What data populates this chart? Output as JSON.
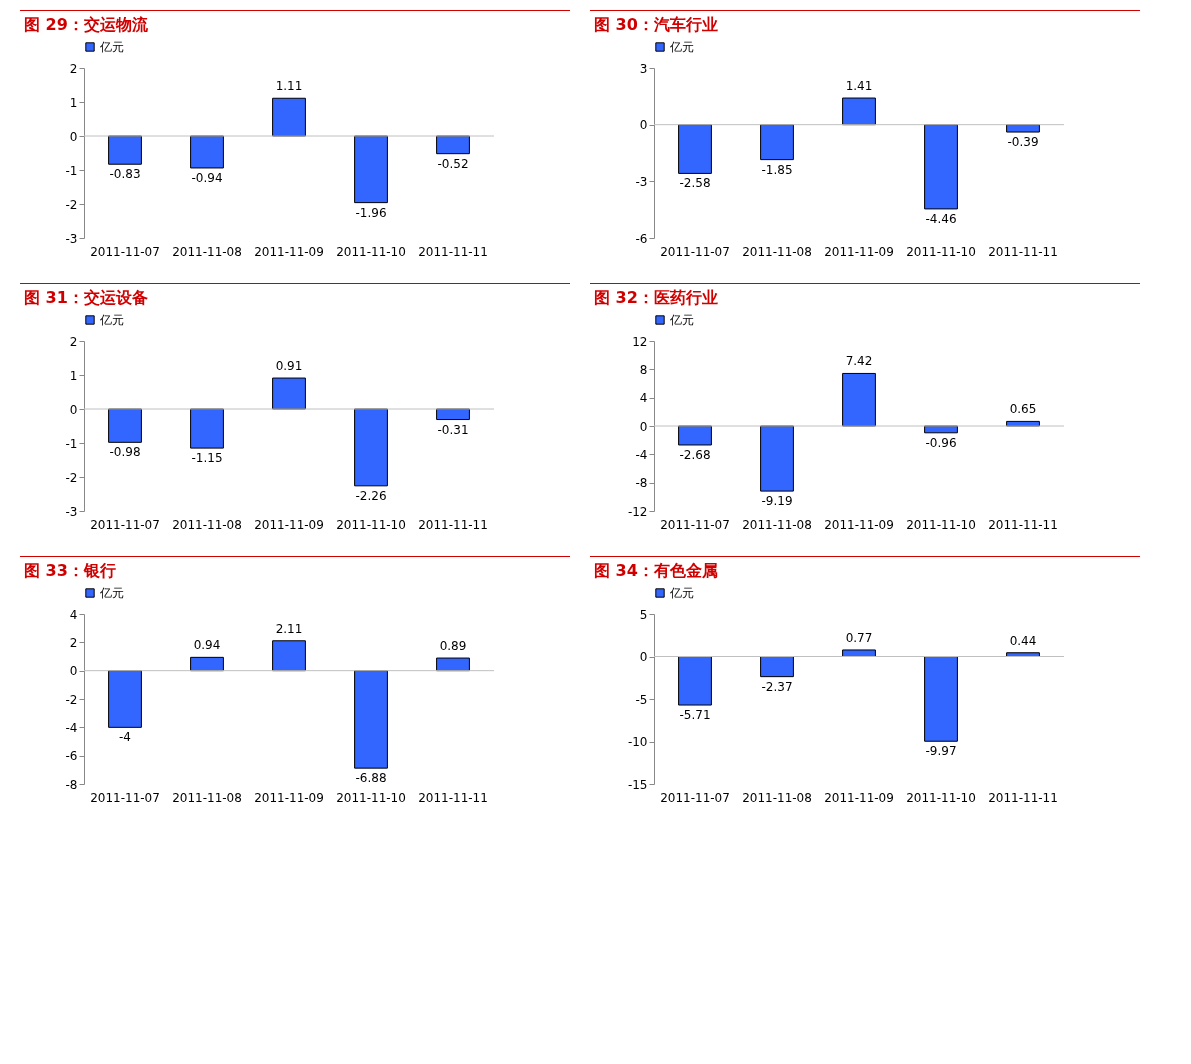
{
  "chart_data": [
    {
      "type": "bar",
      "title": "图 29：交运物流",
      "categories": [
        "2011-11-07",
        "2011-11-08",
        "2011-11-09",
        "2011-11-10",
        "2011-11-11"
      ],
      "series": [
        {
          "name": "亿元",
          "color": "#3366ff",
          "values": [
            -0.83,
            -0.94,
            1.11,
            -1.96,
            -0.52
          ]
        }
      ],
      "ylim": [
        -3,
        2
      ],
      "yticks": [
        -3,
        -2,
        -1,
        0,
        1,
        2
      ],
      "data_labels": true,
      "legend": "top",
      "ref_lines": [
        {
          "axis": "y",
          "value": 0,
          "color": "#c0c0c0"
        }
      ]
    },
    {
      "type": "bar",
      "title": "图 30：汽车行业",
      "categories": [
        "2011-11-07",
        "2011-11-08",
        "2011-11-09",
        "2011-11-10",
        "2011-11-11"
      ],
      "series": [
        {
          "name": "亿元",
          "color": "#3366ff",
          "values": [
            -2.58,
            -1.85,
            1.41,
            -4.46,
            -0.39
          ]
        }
      ],
      "ylim": [
        -6,
        3
      ],
      "yticks": [
        -6,
        -3,
        0,
        3
      ],
      "data_labels": true,
      "legend": "top",
      "ref_lines": [
        {
          "axis": "y",
          "value": 0,
          "color": "#c0c0c0"
        }
      ]
    },
    {
      "type": "bar",
      "title": "图 31：交运设备",
      "categories": [
        "2011-11-07",
        "2011-11-08",
        "2011-11-09",
        "2011-11-10",
        "2011-11-11"
      ],
      "series": [
        {
          "name": "亿元",
          "color": "#3366ff",
          "values": [
            -0.98,
            -1.15,
            0.91,
            -2.26,
            -0.31
          ]
        }
      ],
      "ylim": [
        -3,
        2
      ],
      "yticks": [
        -3,
        -2,
        -1,
        0,
        1,
        2
      ],
      "data_labels": true,
      "legend": "top",
      "ref_lines": [
        {
          "axis": "y",
          "value": 0,
          "color": "#c0c0c0"
        }
      ]
    },
    {
      "type": "bar",
      "title": "图 32：医药行业",
      "categories": [
        "2011-11-07",
        "2011-11-08",
        "2011-11-09",
        "2011-11-10",
        "2011-11-11"
      ],
      "series": [
        {
          "name": "亿元",
          "color": "#3366ff",
          "values": [
            -2.68,
            -9.19,
            7.42,
            -0.96,
            0.65
          ]
        }
      ],
      "ylim": [
        -12,
        12
      ],
      "yticks": [
        -12,
        -8,
        -4,
        0,
        4,
        8,
        12
      ],
      "data_labels": true,
      "legend": "top",
      "ref_lines": [
        {
          "axis": "y",
          "value": 0,
          "color": "#c0c0c0"
        }
      ]
    },
    {
      "type": "bar",
      "title": "图 33：银行",
      "categories": [
        "2011-11-07",
        "2011-11-08",
        "2011-11-09",
        "2011-11-10",
        "2011-11-11"
      ],
      "series": [
        {
          "name": "亿元",
          "color": "#3366ff",
          "values": [
            -4,
            0.94,
            2.11,
            -6.88,
            0.89
          ]
        }
      ],
      "ylim": [
        -8,
        4
      ],
      "yticks": [
        -8,
        -6,
        -4,
        -2,
        0,
        2,
        4
      ],
      "data_labels": true,
      "legend": "top",
      "ref_lines": [
        {
          "axis": "y",
          "value": 0,
          "color": "#c0c0c0"
        }
      ]
    },
    {
      "type": "bar",
      "title": "图 34：有色金属",
      "categories": [
        "2011-11-07",
        "2011-11-08",
        "2011-11-09",
        "2011-11-10",
        "2011-11-11"
      ],
      "series": [
        {
          "name": "亿元",
          "color": "#3366ff",
          "values": [
            -5.71,
            -2.37,
            0.77,
            -9.97,
            0.44
          ]
        }
      ],
      "ylim": [
        -15,
        5
      ],
      "yticks": [
        -15,
        -10,
        -5,
        0,
        5
      ],
      "data_labels": true,
      "legend": "top",
      "ref_lines": [
        {
          "axis": "y",
          "value": 0,
          "color": "#c0c0c0"
        }
      ]
    }
  ]
}
